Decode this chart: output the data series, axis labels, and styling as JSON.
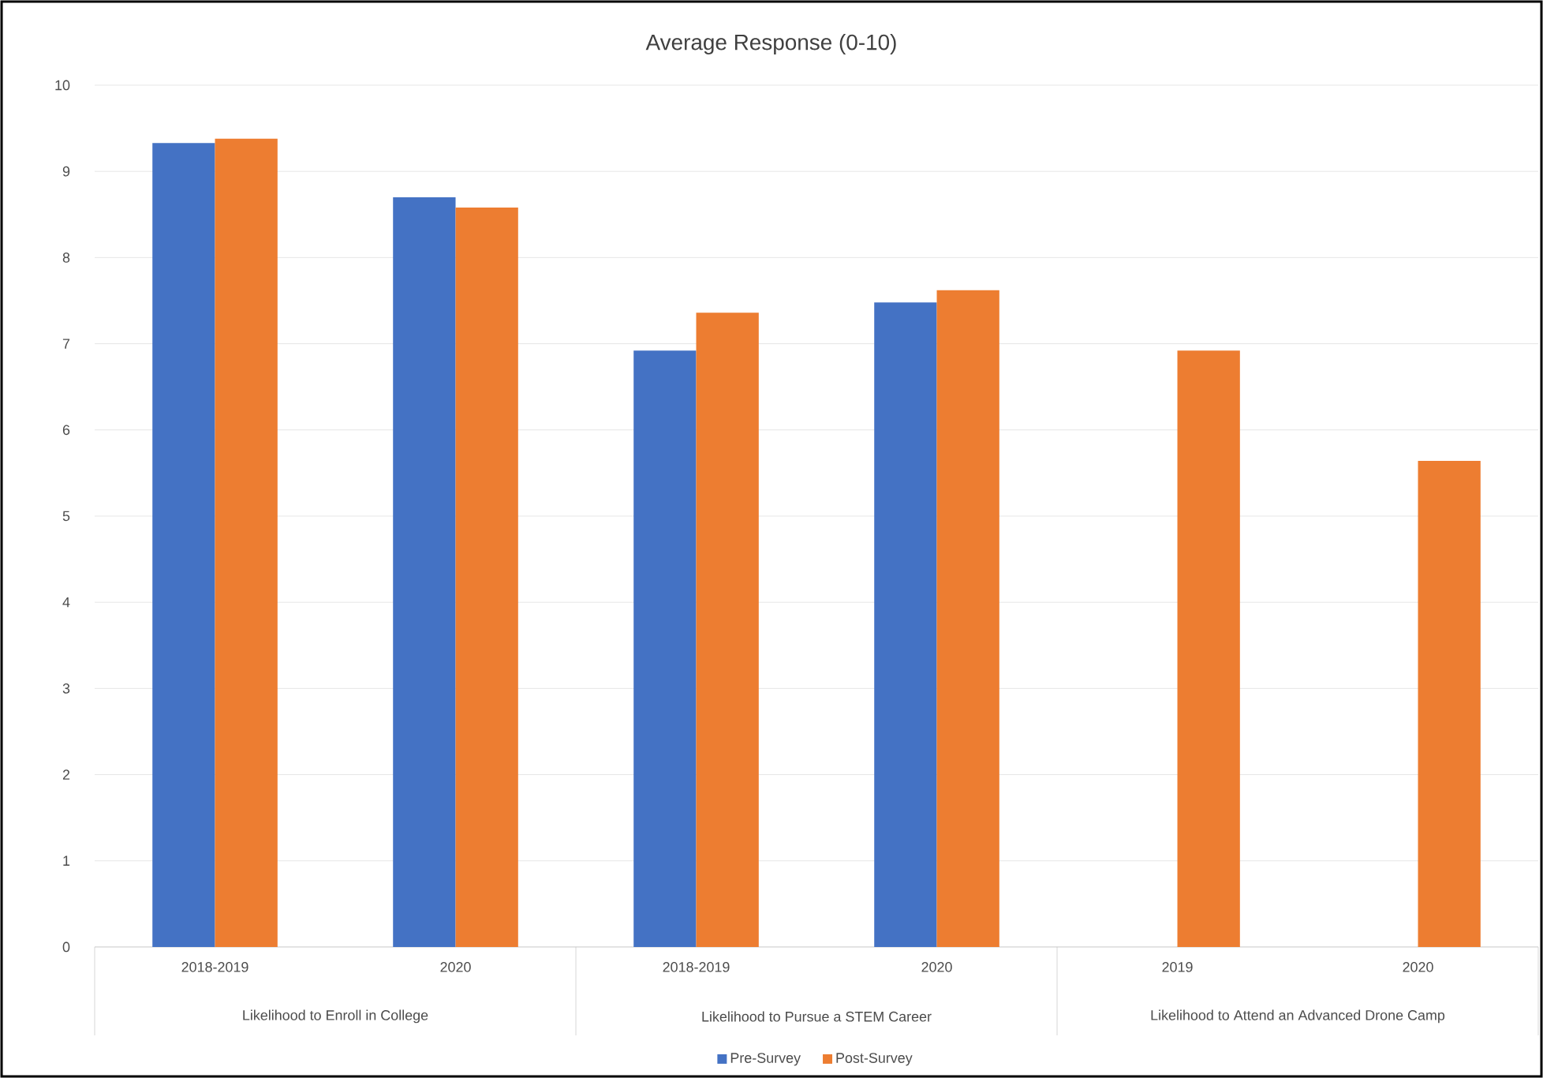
{
  "chart_data": {
    "type": "bar",
    "title": "Average Response (0-10)",
    "categories": [
      "2018-2019",
      "2020",
      "2018-2019",
      "2020",
      "2019",
      "2020"
    ],
    "series": [
      {
        "name": "Pre-Survey",
        "color": "#4472c4",
        "values": [
          9.33,
          8.7,
          6.92,
          7.48,
          null,
          null
        ]
      },
      {
        "name": "Post-Survey",
        "color": "#ed7d31",
        "values": [
          9.38,
          8.58,
          7.36,
          7.62,
          6.92,
          5.64
        ]
      }
    ],
    "annotations": [
      "Likelihood to Enroll in College",
      "Likelihood to Pursue a STEM Career",
      "Likelihood to Attend an Advanced Drone Camp"
    ],
    "ylim": [
      0,
      10
    ],
    "yticks": [
      0,
      1,
      2,
      3,
      4,
      5,
      6,
      7,
      8,
      9,
      10
    ],
    "grid": "y",
    "legend": "bottom"
  }
}
